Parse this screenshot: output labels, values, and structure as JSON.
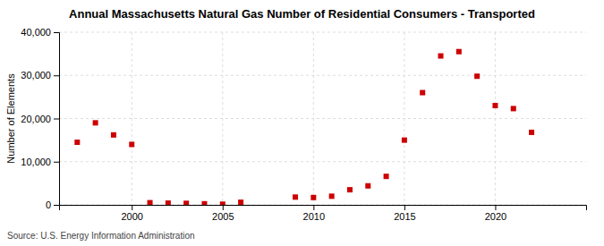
{
  "chart_data": {
    "type": "scatter",
    "title": "Annual Massachusetts Natural Gas Number of Residential Consumers - Transported",
    "ylabel": "Number of Elements",
    "source": "Source: U.S. Energy Information Administration",
    "x": [
      1997,
      1998,
      1999,
      2000,
      2001,
      2002,
      2003,
      2004,
      2005,
      2006,
      2009,
      2010,
      2011,
      2012,
      2013,
      2014,
      2015,
      2016,
      2017,
      2018,
      2019,
      2020,
      2021,
      2022
    ],
    "values": [
      14500,
      19000,
      16200,
      14000,
      500,
      400,
      350,
      250,
      150,
      600,
      1800,
      1700,
      2000,
      3500,
      4400,
      6600,
      15000,
      26000,
      34500,
      35500,
      29800,
      23000,
      22300,
      16800
    ],
    "color": "#cc0000",
    "marker": "square",
    "xlim": [
      1996,
      2025
    ],
    "ylim": [
      0,
      40000
    ],
    "xticks": [
      2000,
      2005,
      2010,
      2015,
      2020
    ],
    "yticks": [
      0,
      {
        "value": 10000,
        "label": "10,000"
      },
      {
        "value": 20000,
        "label": "20,000"
      },
      {
        "value": 30000,
        "label": "30,000"
      },
      {
        "value": 40000,
        "label": "40,000"
      }
    ],
    "grid": true
  }
}
